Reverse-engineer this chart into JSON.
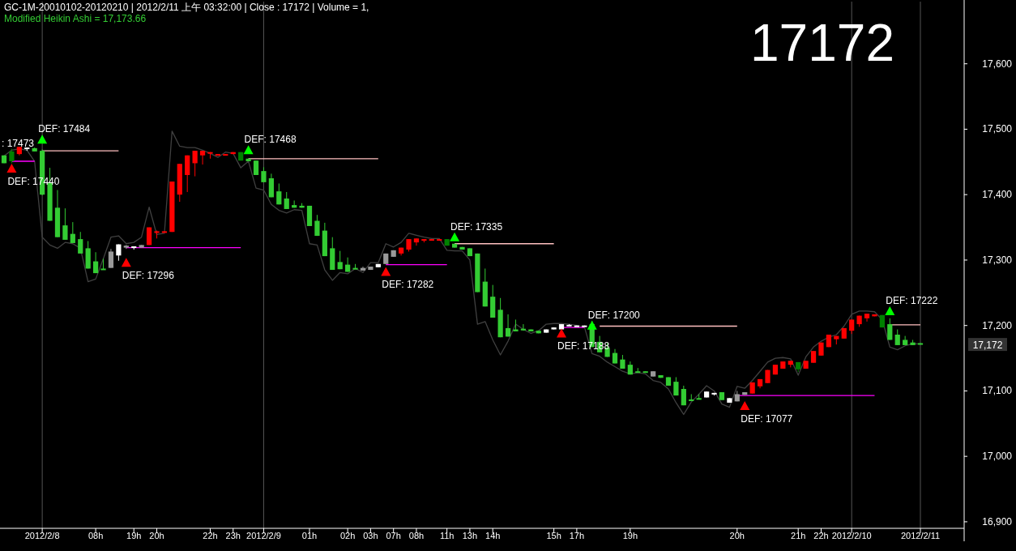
{
  "chart_data": {
    "type": "candlestick",
    "title": "GC-1M-20010102-20120210 | 2012/2/11 上午 03:32:00 | Close : 17172 | Volume = 1,",
    "subtitle": "Modified Heikin Ashi = 17,173.66",
    "categories": [
      null,
      null,
      null,
      null,
      null,
      "2012/2/8",
      null,
      null,
      null,
      null,
      null,
      null,
      "08h",
      null,
      null,
      null,
      null,
      "19h",
      null,
      null,
      "20h",
      null,
      null,
      null,
      null,
      null,
      null,
      "22h",
      null,
      null,
      "23h",
      null,
      null,
      null,
      "2012/2/9",
      null,
      null,
      null,
      null,
      null,
      "01h",
      null,
      null,
      null,
      null,
      "02h",
      null,
      null,
      "03h",
      null,
      null,
      "07h",
      null,
      null,
      "08h",
      null,
      null,
      null,
      "11h",
      null,
      null,
      "13h",
      null,
      null,
      "14h",
      null,
      null,
      null,
      null,
      null,
      null,
      null,
      "15h",
      null,
      null,
      "17h",
      null,
      null,
      null,
      null,
      null,
      null,
      "19h",
      null,
      null,
      null,
      null,
      null,
      null,
      null,
      null,
      null,
      null,
      null,
      null,
      null,
      "20h",
      null,
      null,
      null,
      null,
      null,
      null,
      null,
      "21h",
      null,
      null,
      "22h",
      null,
      null,
      null,
      "2012/2/10",
      null,
      null,
      null,
      null,
      null,
      null,
      null,
      null,
      "2012/2/11"
    ],
    "ohlc": [
      [
        17460,
        17460,
        17448,
        17448
      ],
      [
        17451,
        17470,
        17448,
        17466
      ],
      [
        17462,
        17473,
        17460,
        17473
      ],
      [
        17472,
        17472,
        17467,
        17471
      ],
      [
        17471,
        17472,
        17466,
        17466
      ],
      [
        17467,
        17469,
        17399,
        17400
      ],
      [
        17419,
        17441,
        17360,
        17360
      ],
      [
        17380,
        17407,
        17335,
        17335
      ],
      [
        17353,
        17379,
        17331,
        17331
      ],
      [
        17340,
        17358,
        17326,
        17326
      ],
      [
        17332,
        17343,
        17310,
        17310
      ],
      [
        17318,
        17329,
        17287,
        17287
      ],
      [
        17298,
        17312,
        17280,
        17280
      ],
      [
        17287,
        17302,
        17286,
        17286
      ],
      [
        17288,
        17317,
        17288,
        17313
      ],
      [
        17307,
        17324,
        17299,
        17324
      ],
      [
        17319,
        17323,
        17317,
        17322
      ],
      [
        17320,
        17321,
        17316,
        17321
      ],
      [
        17319,
        17323,
        17319,
        17323
      ],
      [
        17323,
        17350,
        17323,
        17350
      ],
      [
        17343,
        17345,
        17333,
        17344
      ],
      [
        17343,
        17344,
        17343,
        17344
      ],
      [
        17343,
        17420,
        17343,
        17420
      ],
      [
        17400,
        17447,
        17389,
        17447
      ],
      [
        17430,
        17460,
        17404,
        17460
      ],
      [
        17448,
        17467,
        17428,
        17467
      ],
      [
        17460,
        17467,
        17446,
        17467
      ],
      [
        17463,
        17465,
        17455,
        17465
      ],
      [
        17460,
        17462,
        17460,
        17462
      ],
      [
        17461,
        17462,
        17461,
        17462
      ],
      [
        17462,
        17465,
        17462,
        17465
      ],
      [
        17465,
        17465,
        17452,
        17452
      ],
      [
        17455,
        17455,
        17451,
        17451
      ],
      [
        17452,
        17452,
        17430,
        17430
      ],
      [
        17436,
        17442,
        17419,
        17419
      ],
      [
        17425,
        17432,
        17396,
        17396
      ],
      [
        17405,
        17417,
        17385,
        17385
      ],
      [
        17394,
        17404,
        17378,
        17378
      ],
      [
        17384,
        17391,
        17380,
        17380
      ],
      [
        17383,
        17387,
        17380,
        17380
      ],
      [
        17383,
        17383,
        17352,
        17352
      ],
      [
        17360,
        17369,
        17337,
        17337
      ],
      [
        17345,
        17357,
        17306,
        17306
      ],
      [
        17318,
        17335,
        17285,
        17285
      ],
      [
        17297,
        17314,
        17286,
        17286
      ],
      [
        17293,
        17304,
        17282,
        17282
      ],
      [
        17288,
        17294,
        17286,
        17286
      ],
      [
        17288,
        17290,
        17284,
        17284
      ],
      [
        17285,
        17290,
        17285,
        17290
      ],
      [
        17289,
        17294,
        17289,
        17294
      ],
      [
        17294,
        17310,
        17294,
        17310
      ],
      [
        17305,
        17315,
        17305,
        17315
      ],
      [
        17310,
        17319,
        17307,
        17319
      ],
      [
        17316,
        17332,
        17313,
        17332
      ],
      [
        17327,
        17333,
        17322,
        17333
      ],
      [
        17331,
        17332,
        17327,
        17332
      ],
      [
        17331,
        17332,
        17331,
        17332
      ],
      [
        17331,
        17332,
        17331,
        17332
      ],
      [
        17332,
        17332,
        17322,
        17322
      ],
      [
        17325,
        17325,
        17319,
        17319
      ],
      [
        17320,
        17320,
        17316,
        17316
      ],
      [
        17318,
        17318,
        17306,
        17306
      ],
      [
        17310,
        17310,
        17251,
        17251
      ],
      [
        17267,
        17287,
        17229,
        17229
      ],
      [
        17244,
        17262,
        17212,
        17212
      ],
      [
        17224,
        17242,
        17182,
        17182
      ],
      [
        17196,
        17217,
        17183,
        17183
      ],
      [
        17194,
        17209,
        17191,
        17191
      ],
      [
        17195,
        17202,
        17192,
        17194
      ],
      [
        17194,
        17194,
        17191,
        17191
      ],
      [
        17192,
        17192,
        17188,
        17188
      ],
      [
        17189,
        17194,
        17189,
        17194
      ],
      [
        17194,
        17197,
        17194,
        17197
      ],
      [
        17194,
        17202,
        17194,
        17202
      ],
      [
        17200,
        17202,
        17200,
        17201
      ],
      [
        17200,
        17200,
        17199,
        17199
      ],
      [
        17200,
        17200,
        17199,
        17199
      ],
      [
        17202,
        17207,
        17167,
        17167
      ],
      [
        17175,
        17184,
        17159,
        17159
      ],
      [
        17166,
        17173,
        17152,
        17152
      ],
      [
        17158,
        17164,
        17142,
        17142
      ],
      [
        17148,
        17155,
        17134,
        17134
      ],
      [
        17140,
        17145,
        17125,
        17125
      ],
      [
        17130,
        17135,
        17128,
        17128
      ],
      [
        17130,
        17130,
        17128,
        17128
      ],
      [
        17130,
        17130,
        17122,
        17122
      ],
      [
        17124,
        17124,
        17120,
        17120
      ],
      [
        17121,
        17121,
        17108,
        17108
      ],
      [
        17114,
        17121,
        17093,
        17093
      ],
      [
        17103,
        17108,
        17078,
        17078
      ],
      [
        17087,
        17095,
        17085,
        17085
      ],
      [
        17089,
        17095,
        17088,
        17088
      ],
      [
        17090,
        17099,
        17090,
        17099
      ],
      [
        17096,
        17097,
        17093,
        17097
      ],
      [
        17098,
        17098,
        17086,
        17086
      ],
      [
        17082,
        17089,
        17082,
        17089
      ],
      [
        17084,
        17100,
        17084,
        17095
      ],
      [
        17094,
        17098,
        17094,
        17098
      ],
      [
        17096,
        17113,
        17096,
        17113
      ],
      [
        17107,
        17118,
        17104,
        17118
      ],
      [
        17112,
        17132,
        17112,
        17132
      ],
      [
        17125,
        17140,
        17125,
        17140
      ],
      [
        17134,
        17145,
        17134,
        17145
      ],
      [
        17140,
        17146,
        17136,
        17146
      ],
      [
        17144,
        17144,
        17129,
        17133
      ],
      [
        17134,
        17146,
        17134,
        17146
      ],
      [
        17143,
        17161,
        17143,
        17161
      ],
      [
        17154,
        17174,
        17154,
        17174
      ],
      [
        17167,
        17186,
        17167,
        17186
      ],
      [
        17179,
        17184,
        17171,
        17184
      ],
      [
        17180,
        17196,
        17180,
        17196
      ],
      [
        17192,
        17209,
        17187,
        17209
      ],
      [
        17202,
        17215,
        17198,
        17215
      ],
      [
        17211,
        17218,
        17206,
        17218
      ],
      [
        17214,
        17217,
        17214,
        17217
      ],
      [
        17216,
        17216,
        17197,
        17197
      ],
      [
        17202,
        17211,
        17178,
        17178
      ],
      [
        17186,
        17194,
        17170,
        17170
      ],
      [
        17178,
        17184,
        17170,
        17170
      ],
      [
        17174,
        17178,
        17170,
        17170
      ],
      [
        17173,
        17173,
        17171,
        17171
      ]
    ],
    "colors": [
      "#33cc33",
      "#008000",
      "#ff0000",
      "#ffffff",
      "#33cc33",
      "#33cc33",
      "#33cc33",
      "#33cc33",
      "#33cc33",
      "#33cc33",
      "#33cc33",
      "#33cc33",
      "#33cc33",
      "#33cc33",
      "#999999",
      "#ffffff",
      "#999999",
      "#ffffff",
      "#999999",
      "#ff0000",
      "#ff0000",
      "#ff0000",
      "#ff0000",
      "#ff0000",
      "#ff0000",
      "#ff0000",
      "#ff0000",
      "#ff0000",
      "#ff0000",
      "#ff0000",
      "#ff0000",
      "#008000",
      "#33cc33",
      "#33cc33",
      "#33cc33",
      "#33cc33",
      "#33cc33",
      "#33cc33",
      "#33cc33",
      "#33cc33",
      "#33cc33",
      "#33cc33",
      "#33cc33",
      "#33cc33",
      "#33cc33",
      "#33cc33",
      "#33cc33",
      "#999999",
      "#999999",
      "#ffffff",
      "#999999",
      "#999999",
      "#ff0000",
      "#ff0000",
      "#ff0000",
      "#ff0000",
      "#ff0000",
      "#ff0000",
      "#008000",
      "#33cc33",
      "#33cc33",
      "#33cc33",
      "#33cc33",
      "#33cc33",
      "#33cc33",
      "#33cc33",
      "#33cc33",
      "#33cc33",
      "#33cc33",
      "#33cc33",
      "#33cc33",
      "#ffffff",
      "#ffffff",
      "#ffffff",
      "#ffffff",
      "#ffffff",
      "#ffffff",
      "#33cc33",
      "#33cc33",
      "#33cc33",
      "#33cc33",
      "#33cc33",
      "#33cc33",
      "#33cc33",
      "#33cc33",
      "#999999",
      "#33cc33",
      "#33cc33",
      "#33cc33",
      "#33cc33",
      "#33cc33",
      "#33cc33",
      "#ffffff",
      "#ffffff",
      "#33cc33",
      "#ffffff",
      "#999999",
      "#999999",
      "#ff0000",
      "#ff0000",
      "#ff0000",
      "#ff0000",
      "#ff0000",
      "#ff0000",
      "#008000",
      "#ff0000",
      "#ff0000",
      "#ff0000",
      "#ff0000",
      "#ff0000",
      "#ff0000",
      "#ff0000",
      "#ff0000",
      "#ff0000",
      "#ff0000",
      "#008000",
      "#33cc33",
      "#33cc33",
      "#33cc33",
      "#33cc33",
      "#33cc33"
    ],
    "series": [
      {
        "type": "line",
        "color": "#404040",
        "values": [
          17459,
          17468,
          17470,
          17468,
          17451,
          17335,
          17323,
          17318,
          17327,
          17325,
          17318,
          17267,
          17271,
          17302,
          17335,
          17337,
          17325,
          17327,
          17335,
          17381,
          17339,
          17341,
          17497,
          17474,
          17472,
          17472,
          17468,
          17463,
          17457,
          17465,
          17463,
          17441,
          17451,
          17410,
          17407,
          17385,
          17376,
          17372,
          17377,
          17376,
          17325,
          17323,
          17285,
          17269,
          17281,
          17279,
          17287,
          17281,
          17296,
          17296,
          17325,
          17320,
          17327,
          17341,
          17338,
          17335,
          17333,
          17333,
          17315,
          17314,
          17314,
          17300,
          17202,
          17206,
          17178,
          17155,
          17176,
          17202,
          17194,
          17188,
          17192,
          17202,
          17203,
          17203,
          17202,
          17200,
          17198,
          17157,
          17153,
          17144,
          17137,
          17130,
          17126,
          17128,
          17126,
          17116,
          17113,
          17103,
          17082,
          17064,
          17083,
          17095,
          17108,
          17100,
          17080,
          17075,
          17107,
          17104,
          17116,
          17130,
          17144,
          17150,
          17151,
          17149,
          17124,
          17152,
          17167,
          17176,
          17182,
          17186,
          17199,
          17217,
          17222,
          17222,
          17221,
          17209,
          17167,
          17163,
          17169,
          17172,
          17172
        ]
      },
      {
        "type": "line",
        "color": "#ffc0c0",
        "values": [
          null,
          null,
          null,
          null,
          null,
          17467,
          17467,
          17467,
          17467,
          17467,
          17467,
          17467,
          17467,
          17467,
          17467,
          17467,
          null,
          null,
          null,
          null,
          null,
          null,
          null,
          null,
          null,
          null,
          null,
          null,
          null,
          null,
          null,
          null,
          17455,
          17455,
          17455,
          17455,
          17455,
          17455,
          17455,
          17455,
          17455,
          17455,
          17455,
          17455,
          17455,
          17455,
          17455,
          17455,
          17455,
          17455,
          null,
          null,
          null,
          null,
          null,
          null,
          null,
          null,
          null,
          17325,
          17325,
          17325,
          17325,
          17325,
          17325,
          17325,
          17325,
          17325,
          17325,
          17325,
          17325,
          17325,
          17325,
          null,
          null,
          null,
          null,
          null,
          17199,
          17199,
          17199,
          17199,
          17199,
          17199,
          17199,
          17199,
          17199,
          17199,
          17199,
          17199,
          17199,
          17199,
          17199,
          17199,
          17199,
          17199,
          17199,
          null,
          null,
          null,
          null,
          null,
          null,
          null,
          null,
          null,
          null,
          null,
          null,
          null,
          null,
          null,
          null,
          null,
          null,
          null,
          17201,
          17201,
          17201,
          17201,
          17201
        ]
      },
      {
        "type": "line",
        "color": "#ff00ff",
        "values": [
          null,
          17451,
          17451,
          17451,
          17451,
          null,
          null,
          null,
          null,
          null,
          null,
          null,
          null,
          null,
          null,
          null,
          17319,
          17319,
          17319,
          17319,
          17319,
          17319,
          17319,
          17319,
          17319,
          17319,
          17319,
          17319,
          17319,
          17319,
          17319,
          17319,
          null,
          null,
          null,
          null,
          null,
          null,
          null,
          null,
          null,
          null,
          null,
          null,
          null,
          null,
          null,
          null,
          null,
          null,
          17293,
          17293,
          17293,
          17293,
          17293,
          17293,
          17293,
          17293,
          17293,
          null,
          null,
          null,
          null,
          null,
          null,
          null,
          null,
          null,
          null,
          null,
          null,
          null,
          null,
          17197,
          17197,
          17197,
          17197,
          null,
          null,
          null,
          null,
          null,
          null,
          null,
          null,
          null,
          null,
          null,
          null,
          null,
          null,
          null,
          null,
          null,
          null,
          null,
          17093,
          17093,
          17093,
          17093,
          17093,
          17093,
          17093,
          17093,
          17093,
          17093,
          17093,
          17093,
          17093,
          17093,
          17093,
          17093,
          17093,
          17093,
          17093,
          null,
          null,
          null,
          null,
          null,
          null
        ]
      },
      {
        "type": "scatter",
        "marker": "triangle",
        "color": "#00ff00",
        "values": [
          null,
          null,
          null,
          null,
          null,
          17484,
          null,
          null,
          null,
          null,
          null,
          null,
          null,
          null,
          null,
          null,
          null,
          null,
          null,
          null,
          null,
          null,
          null,
          null,
          null,
          null,
          null,
          null,
          null,
          null,
          null,
          null,
          17468,
          null,
          null,
          null,
          null,
          null,
          null,
          null,
          null,
          null,
          null,
          null,
          null,
          null,
          null,
          null,
          null,
          null,
          null,
          null,
          null,
          null,
          null,
          null,
          null,
          null,
          null,
          17335,
          null,
          null,
          null,
          null,
          null,
          null,
          null,
          null,
          null,
          null,
          null,
          null,
          null,
          null,
          null,
          null,
          null,
          17200,
          null,
          null,
          null,
          null,
          null,
          null,
          null,
          null,
          null,
          null,
          null,
          null,
          null,
          null,
          null,
          null,
          null,
          null,
          null,
          null,
          null,
          null,
          null,
          null,
          null,
          null,
          null,
          null,
          null,
          null,
          null,
          null,
          null,
          null,
          null,
          null,
          null,
          null,
          17222,
          null,
          null,
          null,
          null
        ],
        "value_labels": [
          null,
          null,
          null,
          null,
          null,
          "DEF: 17484",
          null,
          null,
          null,
          null,
          null,
          null,
          null,
          null,
          null,
          null,
          null,
          null,
          null,
          null,
          null,
          null,
          null,
          null,
          null,
          null,
          null,
          null,
          null,
          null,
          null,
          null,
          "DEF: 17468",
          null,
          null,
          null,
          null,
          null,
          null,
          null,
          null,
          null,
          null,
          null,
          null,
          null,
          null,
          null,
          null,
          null,
          null,
          null,
          null,
          null,
          null,
          null,
          null,
          null,
          null,
          "DEF: 17335",
          null,
          null,
          null,
          null,
          null,
          null,
          null,
          null,
          null,
          null,
          null,
          null,
          null,
          null,
          null,
          null,
          null,
          "DEF: 17200",
          null,
          null,
          null,
          null,
          null,
          null,
          null,
          null,
          null,
          null,
          null,
          null,
          null,
          null,
          null,
          null,
          null,
          null,
          null,
          null,
          null,
          null,
          null,
          null,
          null,
          null,
          null,
          null,
          null,
          null,
          null,
          null,
          null,
          null,
          null,
          null,
          null,
          null,
          "DEF: 17222",
          null,
          null,
          null,
          null
        ]
      },
      {
        "type": "scatter",
        "marker": "triangle",
        "color": "#ff0000",
        "values": [
          null,
          17440,
          null,
          null,
          null,
          null,
          null,
          null,
          null,
          null,
          null,
          null,
          null,
          null,
          null,
          null,
          17296,
          null,
          null,
          null,
          null,
          null,
          null,
          null,
          null,
          null,
          null,
          null,
          null,
          null,
          null,
          null,
          null,
          null,
          null,
          null,
          null,
          null,
          null,
          null,
          null,
          null,
          null,
          null,
          null,
          null,
          null,
          null,
          null,
          null,
          17282,
          null,
          null,
          null,
          null,
          null,
          null,
          null,
          null,
          null,
          null,
          null,
          null,
          null,
          null,
          null,
          null,
          null,
          null,
          null,
          null,
          null,
          null,
          17188,
          null,
          null,
          null,
          null,
          null,
          null,
          null,
          null,
          null,
          null,
          null,
          null,
          null,
          null,
          null,
          null,
          null,
          null,
          null,
          null,
          null,
          null,
          null,
          17077,
          null,
          null,
          null,
          null,
          null,
          null,
          null,
          null,
          null,
          null,
          null,
          null,
          null,
          null,
          null,
          null,
          null,
          null,
          null,
          null,
          null,
          null,
          null
        ],
        "value_labels": [
          null,
          "DEF: 17440",
          null,
          null,
          null,
          null,
          null,
          null,
          null,
          null,
          null,
          null,
          null,
          null,
          null,
          null,
          "DEF: 17296",
          null,
          null,
          null,
          null,
          null,
          null,
          null,
          null,
          null,
          null,
          null,
          null,
          null,
          null,
          null,
          null,
          null,
          null,
          null,
          null,
          null,
          null,
          null,
          null,
          null,
          null,
          null,
          null,
          null,
          null,
          null,
          null,
          null,
          "DEF: 17282",
          null,
          null,
          null,
          null,
          null,
          null,
          null,
          null,
          null,
          null,
          null,
          null,
          null,
          null,
          null,
          null,
          null,
          null,
          null,
          null,
          null,
          null,
          "DEF: 17188",
          null,
          null,
          null,
          null,
          null,
          null,
          null,
          null,
          null,
          null,
          null,
          null,
          null,
          null,
          null,
          null,
          null,
          null,
          null,
          null,
          null,
          null,
          null,
          "DEF: 17077",
          null,
          null,
          null,
          null,
          null,
          null,
          null,
          null,
          null,
          null,
          null,
          null,
          null,
          null,
          null,
          null,
          null,
          null,
          null,
          null,
          null,
          null,
          null
        ]
      }
    ],
    "ylim": [
      16890,
      17695
    ],
    "yticks": [
      {
        "value": 16900,
        "label": "16,900"
      },
      {
        "value": 17000,
        "label": "17,000"
      },
      {
        "value": 17100,
        "label": "17,100"
      },
      {
        "value": 17200,
        "label": "17,200"
      },
      {
        "value": 17300,
        "label": "17,300"
      },
      {
        "value": 17400,
        "label": "17,400"
      },
      {
        "value": 17500,
        "label": "17,500"
      },
      {
        "value": 17600,
        "label": "17,600"
      }
    ],
    "ref_lines": [
      {
        "axis": "x",
        "value": "2012/2/8",
        "color": "#555555"
      },
      {
        "axis": "x",
        "value": "2012/2/9",
        "color": "#555555"
      },
      {
        "axis": "x",
        "value": "2012/2/10",
        "color": "#555555"
      },
      {
        "axis": "x",
        "value": "2012/2/11",
        "color": "#555555"
      }
    ],
    "annotations": [
      "17172",
      {
        "text": ": 17473",
        "y": 17473
      },
      "17,172"
    ]
  }
}
